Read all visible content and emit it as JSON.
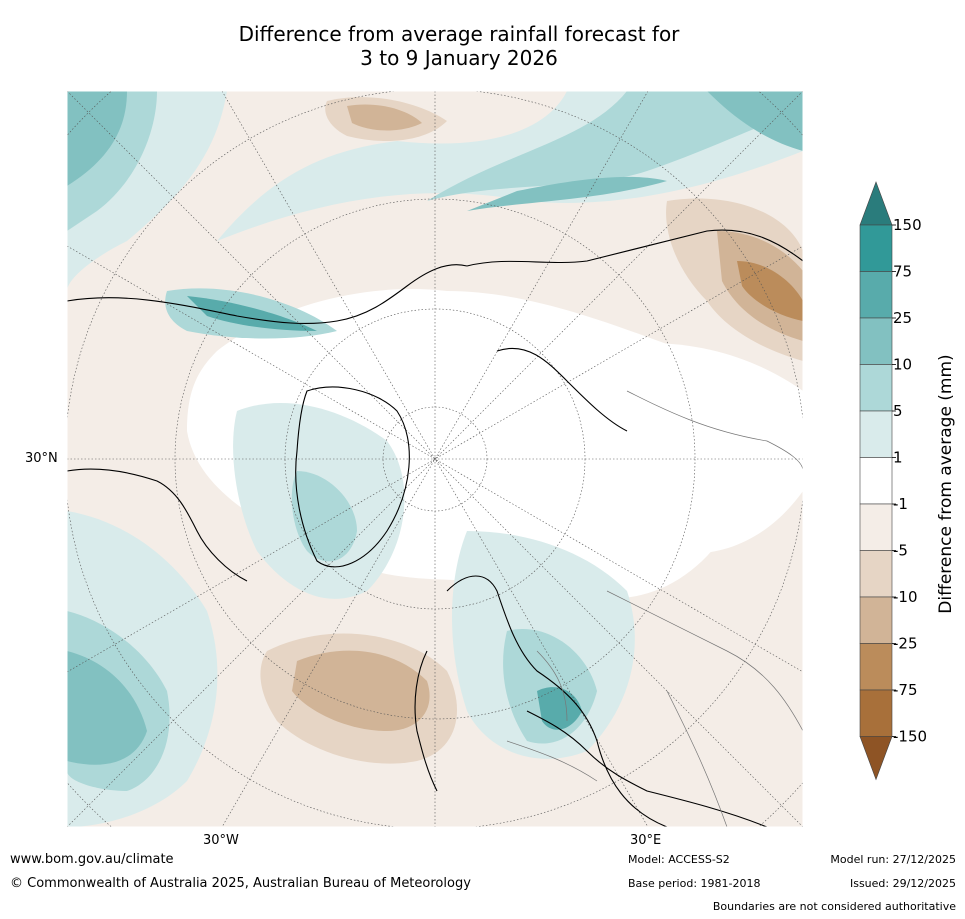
{
  "title": {
    "line1": "Difference from average rainfall forecast for",
    "line2": "3 to 9 January 2026"
  },
  "map_labels": {
    "lat30n": "30°N",
    "lon30w": "30°W",
    "lon30e": "30°E"
  },
  "colorbar": {
    "title": "Difference from average (mm)",
    "ticks": [
      "150",
      "75",
      "25",
      "10",
      "5",
      "1",
      "-1",
      "-5",
      "-10",
      "-25",
      "-75",
      "-150"
    ],
    "colors": [
      "#2a7c7c",
      "#319998",
      "#58abab",
      "#82c1c1",
      "#add8d8",
      "#d9ebeb",
      "#ffffff",
      "#f4ede7",
      "#e6d5c5",
      "#d1b497",
      "#bb8c5b",
      "#a8703a",
      "#8e5425"
    ]
  },
  "footer": {
    "url": "www.bom.gov.au/climate",
    "copyright": "© Commonwealth of Australia 2025, Australian Bureau of Meteorology",
    "model": "Model: ACCESS-S2",
    "base_period": "Base period: 1981-2018",
    "model_run": "Model run: 27/12/2025",
    "issued": "Issued: 29/12/2025",
    "disclaimer": "Boundaries are not considered authoritative"
  }
}
